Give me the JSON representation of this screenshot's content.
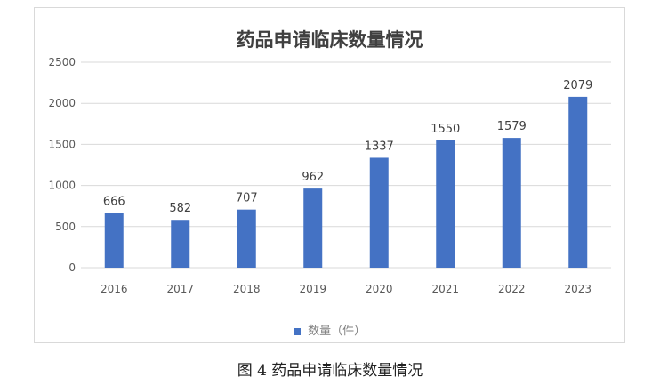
{
  "caption": "图 4 药品申请临床数量情况",
  "colors": {
    "bar": "#4472c4",
    "grid": "#d9d9d9",
    "text": "#595959"
  },
  "chart_data": {
    "type": "bar",
    "title": "药品申请临床数量情况",
    "categories": [
      "2016",
      "2017",
      "2018",
      "2019",
      "2020",
      "2021",
      "2022",
      "2023"
    ],
    "series": [
      {
        "name": "数量（件）",
        "values": [
          666,
          582,
          707,
          962,
          1337,
          1550,
          1579,
          2079
        ]
      }
    ],
    "ylim": [
      0,
      2500
    ],
    "yticks": [
      0,
      500,
      1000,
      1500,
      2000,
      2500
    ],
    "grid": true,
    "legend": "bottom-center",
    "data_labels": true
  }
}
